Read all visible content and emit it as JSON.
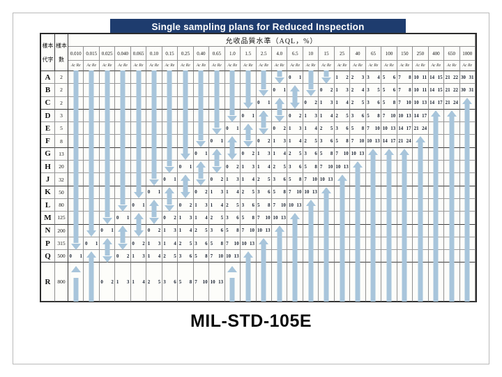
{
  "slide": {
    "title": "Single sampling plans for Reduced Inspection",
    "caption": "MIL-STD-105E",
    "title_bg": "#1e3c6e",
    "arrow_color": "#a8c5db"
  },
  "table": {
    "corner_code_letter": [
      "樣本",
      "代字"
    ],
    "corner_sample_size": [
      "樣本",
      "數"
    ],
    "aql_title": "允收品質水準（AQL，%）",
    "ac_re_label": "Ac Re",
    "aql_columns": [
      "0.010",
      "0.015",
      "0.025",
      "0.040",
      "0.065",
      "0.10",
      "0.15",
      "0.25",
      "0.40",
      "0.65",
      "1.0",
      "1.5",
      "2.5",
      "4.0",
      "6.5",
      "10",
      "15",
      "25",
      "40",
      "65",
      "100",
      "150",
      "250",
      "400",
      "650",
      "1000"
    ],
    "legend": {
      "d": "down-arrow-shaft",
      "dh": "down-arrow-head",
      "u": "up-arrow-shaft",
      "uh": "up-arrow-head"
    },
    "rows": [
      {
        "letter": "A",
        "size": "2",
        "cells": [
          "d",
          "d",
          "d",
          "d",
          "d",
          "d",
          "d",
          "d",
          "d",
          "d",
          "d",
          "d",
          "d",
          "dh",
          "0 1",
          "d",
          "dh",
          "1 2",
          "2 3",
          "3 4",
          "5 6",
          "7 8",
          "10 11",
          "14 15",
          "21 22",
          "30 31"
        ]
      },
      {
        "letter": "B",
        "size": "2",
        "cells": [
          "d",
          "d",
          "d",
          "d",
          "d",
          "d",
          "d",
          "d",
          "d",
          "d",
          "d",
          "d",
          "dh",
          "0 1",
          "uh",
          "dh",
          "0 2",
          "1 3",
          "2 4",
          "3 5",
          "5 6",
          "7 8",
          "10 11",
          "14 15",
          "21 22",
          "30 31"
        ]
      },
      {
        "letter": "C",
        "size": "2",
        "cells": [
          "d",
          "d",
          "d",
          "d",
          "d",
          "d",
          "d",
          "d",
          "d",
          "d",
          "d",
          "dh",
          "0 1",
          "uh",
          "dh",
          "0 2",
          "1 3",
          "1 4",
          "2 5",
          "3 6",
          "5 8",
          "7 10",
          "10 13",
          "14 17",
          "21 24",
          "uh"
        ]
      },
      {
        "letter": "D",
        "size": "3",
        "cells": [
          "d",
          "d",
          "d",
          "d",
          "d",
          "d",
          "d",
          "d",
          "d",
          "d",
          "dh",
          "0 1",
          "uh",
          "dh",
          "0 2",
          "1 3",
          "1 4",
          "2 5",
          "3 6",
          "5 8",
          "7 10",
          "10 13",
          "14 17",
          "uh",
          "uh",
          "u"
        ]
      },
      {
        "letter": "E",
        "size": "5",
        "cells": [
          "d",
          "d",
          "d",
          "d",
          "d",
          "d",
          "d",
          "d",
          "d",
          "dh",
          "0 1",
          "uh",
          "dh",
          "0 2",
          "1 3",
          "1 4",
          "2 5",
          "3 6",
          "5 8",
          "7 10",
          "10 13",
          "14 17",
          "21 24",
          "u",
          "u",
          "u"
        ]
      },
      {
        "letter": "F",
        "size": "8",
        "cells": [
          "d",
          "d",
          "d",
          "d",
          "d",
          "d",
          "d",
          "d",
          "dh",
          "0 1",
          "uh",
          "dh",
          "0 2",
          "1 3",
          "1 4",
          "2 5",
          "3 6",
          "5 8",
          "7 10",
          "10 13",
          "14 17",
          "21 24",
          "uh",
          "u",
          "u",
          "u"
        ]
      },
      {
        "letter": "G",
        "size": "13",
        "cells": [
          "d",
          "d",
          "d",
          "d",
          "d",
          "d",
          "d",
          "dh",
          "0 1",
          "uh",
          "dh",
          "0 2",
          "1 3",
          "1 4",
          "2 5",
          "3 6",
          "5 8",
          "7 10",
          "10 13",
          "uh",
          "uh",
          "uh",
          "u",
          "u",
          "u",
          "u"
        ]
      },
      {
        "letter": "H",
        "size": "20",
        "cells": [
          "d",
          "d",
          "d",
          "d",
          "d",
          "d",
          "dh",
          "0 1",
          "uh",
          "dh",
          "0 2",
          "1 3",
          "1 4",
          "2 5",
          "3 6",
          "5 8",
          "7 10",
          "10 13",
          "uh",
          "u",
          "u",
          "u",
          "u",
          "u",
          "u",
          "u"
        ]
      },
      {
        "letter": "J",
        "size": "32",
        "cells": [
          "d",
          "d",
          "d",
          "d",
          "d",
          "dh",
          "0 1",
          "uh",
          "dh",
          "0 2",
          "1 3",
          "1 4",
          "2 5",
          "3 6",
          "5 8",
          "7 10",
          "10 13",
          "uh",
          "u",
          "u",
          "u",
          "u",
          "u",
          "u",
          "u",
          "u"
        ]
      },
      {
        "letter": "K",
        "size": "50",
        "cells": [
          "d",
          "d",
          "d",
          "d",
          "dh",
          "0 1",
          "uh",
          "dh",
          "0 2",
          "1 3",
          "1 4",
          "2 5",
          "3 6",
          "5 8",
          "7 10",
          "10 13",
          "uh",
          "u",
          "u",
          "u",
          "u",
          "u",
          "u",
          "u",
          "u",
          "u"
        ]
      },
      {
        "letter": "L",
        "size": "80",
        "cells": [
          "d",
          "d",
          "d",
          "dh",
          "0 1",
          "uh",
          "dh",
          "0 2",
          "1 3",
          "1 4",
          "2 5",
          "3 6",
          "5 8",
          "7 10",
          "10 13",
          "uh",
          "u",
          "u",
          "u",
          "u",
          "u",
          "u",
          "u",
          "u",
          "u",
          "u"
        ]
      },
      {
        "letter": "M",
        "size": "125",
        "cells": [
          "d",
          "d",
          "dh",
          "0 1",
          "uh",
          "dh",
          "0 2",
          "1 3",
          "1 4",
          "2 5",
          "3 6",
          "5 8",
          "7 10",
          "10 13",
          "uh",
          "u",
          "u",
          "u",
          "u",
          "u",
          "u",
          "u",
          "u",
          "u",
          "u",
          "u"
        ]
      },
      {
        "letter": "N",
        "size": "200",
        "cells": [
          "d",
          "dh",
          "0 1",
          "uh",
          "dh",
          "0 2",
          "1 3",
          "1 4",
          "2 5",
          "3 6",
          "5 8",
          "7 10",
          "10 13",
          "uh",
          "u",
          "u",
          "u",
          "u",
          "u",
          "u",
          "u",
          "u",
          "u",
          "u",
          "u",
          "u"
        ]
      },
      {
        "letter": "P",
        "size": "315",
        "cells": [
          "dh",
          "0 1",
          "uh",
          "dh",
          "0 2",
          "1 3",
          "1 4",
          "2 5",
          "3 6",
          "5 8",
          "7 10",
          "10 13",
          "uh",
          "u",
          "u",
          "u",
          "u",
          "u",
          "u",
          "u",
          "u",
          "u",
          "u",
          "u",
          "u",
          "u"
        ]
      },
      {
        "letter": "Q",
        "size": "500",
        "cells": [
          "0 1",
          "uh",
          "dh",
          "0 2",
          "1 3",
          "1 4",
          "2 5",
          "3 6",
          "5 8",
          "7 10",
          "10 13",
          "uh",
          "u",
          "u",
          "u",
          "u",
          "u",
          "u",
          "u",
          "u",
          "u",
          "u",
          "u",
          "u",
          "u",
          "u"
        ]
      },
      {
        "letter": "R",
        "size": "800",
        "cells": [
          "uh",
          "u",
          "0 2",
          "1 3",
          "1 4",
          "2 5",
          "3 6",
          "5 8",
          "7 10",
          "10 13",
          "uh",
          "u",
          "u",
          "u",
          "u",
          "u",
          "u",
          "u",
          "u",
          "u",
          "u",
          "u",
          "u",
          "u",
          "u",
          "u"
        ]
      }
    ],
    "group_end_letters": [
      "C",
      "F",
      "J",
      "M",
      "Q"
    ]
  }
}
